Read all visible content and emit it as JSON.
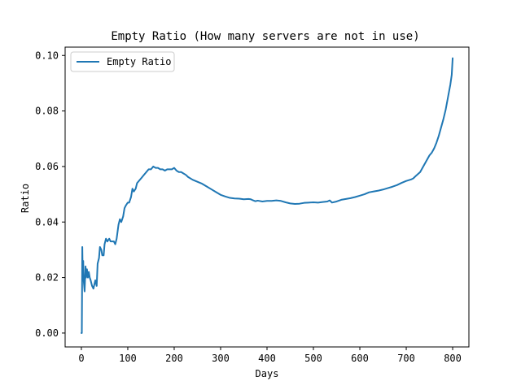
{
  "chart_data": {
    "type": "line",
    "title": "Empty Ratio (How many servers are not in use)",
    "xlabel": "Days",
    "ylabel": "Ratio",
    "xlim": [
      -35,
      835
    ],
    "ylim": [
      -0.005,
      0.103
    ],
    "xticks": [
      0,
      100,
      200,
      300,
      400,
      500,
      600,
      700,
      800
    ],
    "yticks": [
      0.0,
      0.02,
      0.04,
      0.06,
      0.08,
      0.1
    ],
    "ytick_labels": [
      "0.00",
      "0.02",
      "0.04",
      "0.06",
      "0.08",
      "0.10"
    ],
    "legend_position": "upper-left",
    "series": [
      {
        "name": "Empty Ratio",
        "color": "#1f77b4",
        "x": [
          0,
          1,
          2,
          3,
          4,
          5,
          7,
          9,
          10,
          12,
          14,
          16,
          18,
          20,
          23,
          26,
          30,
          33,
          35,
          38,
          40,
          43,
          45,
          48,
          50,
          53,
          56,
          60,
          63,
          66,
          70,
          73,
          76,
          80,
          83,
          86,
          90,
          93,
          96,
          100,
          103,
          107,
          110,
          113,
          117,
          120,
          125,
          130,
          135,
          140,
          145,
          150,
          155,
          160,
          165,
          170,
          175,
          180,
          185,
          190,
          195,
          200,
          205,
          210,
          215,
          220,
          225,
          230,
          240,
          250,
          260,
          270,
          280,
          290,
          300,
          310,
          320,
          330,
          340,
          350,
          360,
          365,
          370,
          375,
          380,
          390,
          400,
          410,
          420,
          430,
          440,
          450,
          460,
          470,
          480,
          490,
          500,
          510,
          520,
          530,
          535,
          540,
          550,
          560,
          570,
          580,
          590,
          600,
          610,
          620,
          630,
          640,
          650,
          660,
          670,
          680,
          690,
          700,
          710,
          715,
          720,
          730,
          740,
          745,
          750,
          755,
          760,
          765,
          770,
          775,
          780,
          785,
          790,
          795,
          798,
          800
        ],
        "y": [
          0.0,
          0.0,
          0.031,
          0.02,
          0.026,
          0.019,
          0.015,
          0.024,
          0.02,
          0.023,
          0.02,
          0.022,
          0.02,
          0.019,
          0.017,
          0.016,
          0.019,
          0.017,
          0.025,
          0.027,
          0.031,
          0.03,
          0.028,
          0.028,
          0.032,
          0.034,
          0.033,
          0.034,
          0.033,
          0.033,
          0.033,
          0.032,
          0.034,
          0.039,
          0.041,
          0.04,
          0.042,
          0.045,
          0.046,
          0.047,
          0.047,
          0.049,
          0.052,
          0.051,
          0.052,
          0.054,
          0.055,
          0.056,
          0.057,
          0.058,
          0.059,
          0.059,
          0.06,
          0.0595,
          0.0595,
          0.059,
          0.059,
          0.0585,
          0.059,
          0.059,
          0.059,
          0.0595,
          0.0585,
          0.058,
          0.058,
          0.0575,
          0.057,
          0.0562,
          0.0552,
          0.0545,
          0.0538,
          0.0528,
          0.0518,
          0.0508,
          0.0498,
          0.0492,
          0.0487,
          0.0485,
          0.0484,
          0.0482,
          0.0483,
          0.0482,
          0.0478,
          0.0475,
          0.0477,
          0.0474,
          0.0476,
          0.0476,
          0.0478,
          0.0476,
          0.0471,
          0.0467,
          0.0465,
          0.0466,
          0.0469,
          0.047,
          0.0471,
          0.047,
          0.0472,
          0.0474,
          0.0478,
          0.047,
          0.0474,
          0.048,
          0.0483,
          0.0486,
          0.049,
          0.0495,
          0.05,
          0.0507,
          0.051,
          0.0513,
          0.0517,
          0.0522,
          0.0527,
          0.0533,
          0.0541,
          0.0548,
          0.0553,
          0.0557,
          0.0565,
          0.058,
          0.061,
          0.0625,
          0.064,
          0.065,
          0.0665,
          0.0685,
          0.071,
          0.074,
          0.077,
          0.0805,
          0.085,
          0.0895,
          0.093,
          0.099
        ]
      }
    ]
  }
}
